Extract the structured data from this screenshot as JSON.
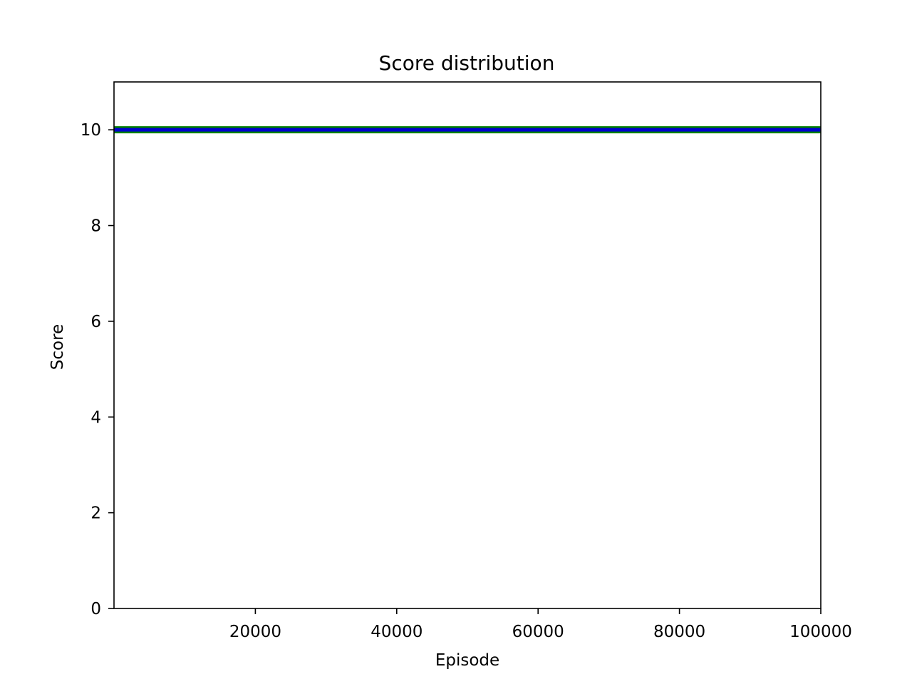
{
  "chart_data": {
    "type": "line",
    "title": "Score distribution",
    "xlabel": "Episode",
    "ylabel": "Score",
    "xlim": [
      0,
      100000
    ],
    "ylim": [
      0,
      11
    ],
    "xticks": [
      20000,
      40000,
      60000,
      80000,
      100000
    ],
    "yticks": [
      0,
      2,
      4,
      6,
      8,
      10
    ],
    "grid": false,
    "series": [
      {
        "color": "#008000",
        "x": [
          0,
          100000
        ],
        "y": [
          10,
          10
        ]
      },
      {
        "color": "#0000cc",
        "x": [
          0,
          100000
        ],
        "y": [
          10,
          10
        ]
      }
    ]
  }
}
